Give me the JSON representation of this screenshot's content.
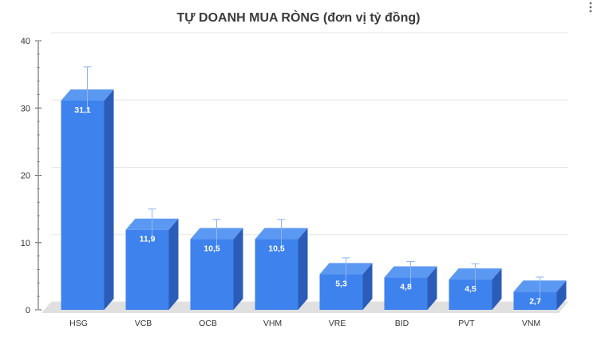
{
  "chart_data": {
    "type": "bar",
    "title": "TỰ DOANH MUA RÒNG (đơn vị tỷ đồng)",
    "xlabel": "",
    "ylabel": "",
    "ylim": [
      0,
      40
    ],
    "yticks": [
      0,
      10,
      20,
      30,
      40
    ],
    "grid": true,
    "categories": [
      "HSG",
      "VCB",
      "OCB",
      "VHM",
      "VRE",
      "BID",
      "PVT",
      "VNM"
    ],
    "values": [
      31.1,
      11.9,
      10.5,
      10.5,
      5.3,
      4.8,
      4.5,
      2.7
    ],
    "data_labels": [
      "31,1",
      "11,9",
      "10,5",
      "10,5",
      "5,3",
      "4,8",
      "4,5",
      "2,7"
    ],
    "colors": {
      "front": "#3e82ee",
      "side": "#2a5cb8",
      "top": "#5b98f2",
      "floor": "#e0e0e0",
      "error_bar": "#8fb4f0"
    }
  }
}
